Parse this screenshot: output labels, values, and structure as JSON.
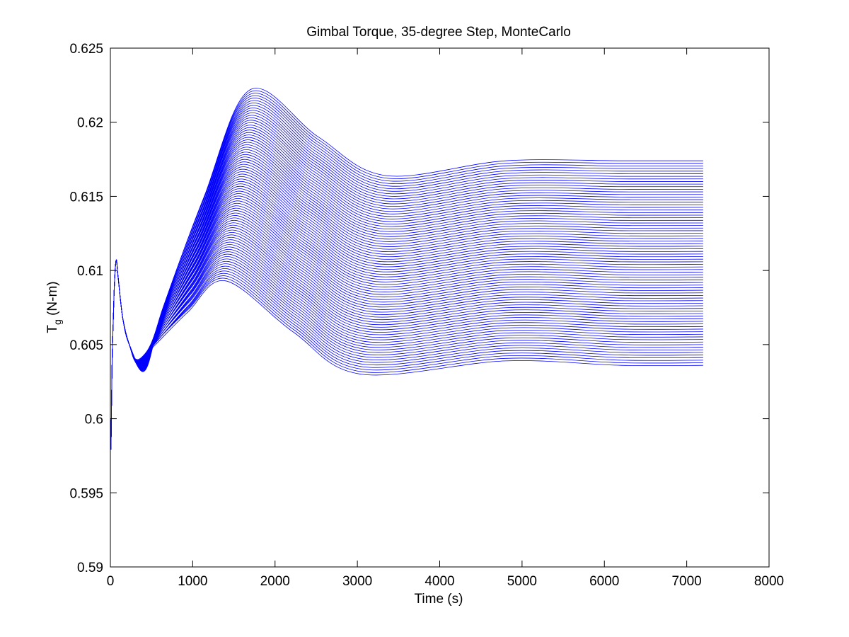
{
  "chart_data": {
    "type": "line",
    "title": "Gimbal Torque, 35-degree Step, MonteCarlo",
    "xlabel": "Time (s)",
    "ylabel": {
      "main": "T",
      "sub": "g",
      "unit": " (N-m)"
    },
    "xlim": [
      0,
      8000
    ],
    "ylim": [
      0.59,
      0.625
    ],
    "xticks": [
      0,
      1000,
      2000,
      3000,
      4000,
      5000,
      6000,
      7000,
      8000
    ],
    "xtick_labels": [
      "0",
      "1000",
      "2000",
      "3000",
      "4000",
      "5000",
      "6000",
      "7000",
      "8000"
    ],
    "yticks": [
      0.59,
      0.595,
      0.6,
      0.605,
      0.61,
      0.615,
      0.62,
      0.625
    ],
    "ytick_labels": [
      "0.59",
      "0.595",
      "0.6",
      "0.605",
      "0.61",
      "0.615",
      "0.62",
      "0.625"
    ],
    "grid": false,
    "series_color": "#0000ff",
    "run_count": 80,
    "time_end": 7200,
    "envelope": {
      "initial_dip": {
        "t": 5,
        "value": 0.598
      },
      "initial_spike": {
        "t": 70,
        "value": 0.6107
      },
      "trough": {
        "t": 400,
        "value_min": 0.6032,
        "value_max": 0.6042
      },
      "peak": {
        "t_min": 1400,
        "t_max": 1700,
        "value_min": 0.6093,
        "value_max": 0.6222
      },
      "undershoot": {
        "t": 3200,
        "value_min": 0.603,
        "value_max": 0.6164
      },
      "overshoot": {
        "t": 4800,
        "value_min": 0.6039,
        "value_max": 0.6174
      },
      "final": {
        "value_min": 0.6036,
        "value_max": 0.6174
      }
    }
  }
}
